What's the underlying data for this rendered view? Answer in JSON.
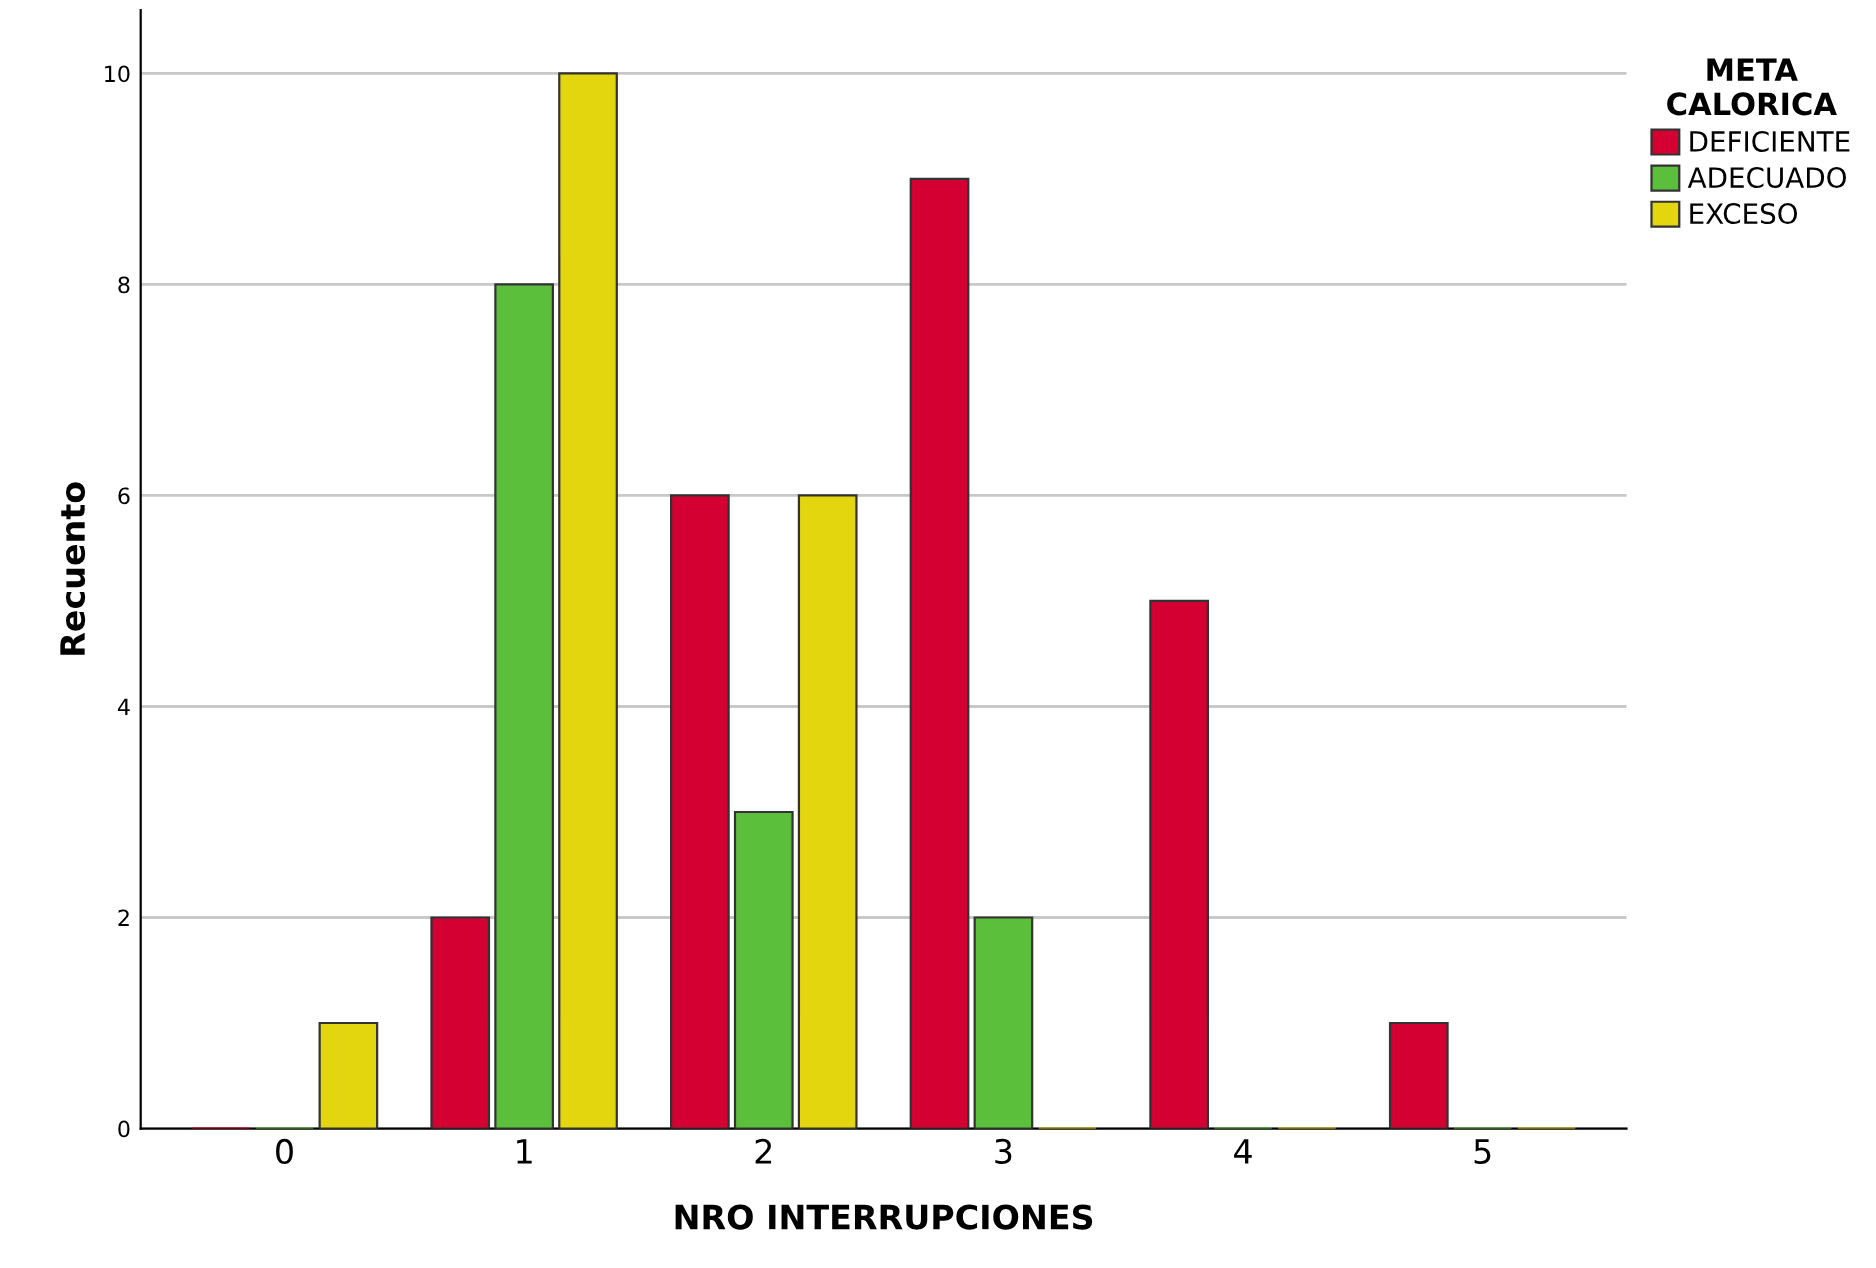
{
  "chart_data": {
    "type": "bar",
    "xlabel": "NRO INTERRUPCIONES",
    "ylabel": "Recuento",
    "legend_title": "META\nCALORICA",
    "categories": [
      "0",
      "1",
      "2",
      "3",
      "4",
      "5"
    ],
    "series": [
      {
        "name": "DEFICIENTE",
        "color": "#d50032",
        "values": [
          0,
          2,
          6,
          9,
          5,
          1
        ]
      },
      {
        "name": "ADECUADO",
        "color": "#5cbf3c",
        "values": [
          0,
          8,
          3,
          2,
          0,
          0
        ]
      },
      {
        "name": "EXCESO",
        "color": "#e3d50e",
        "values": [
          1,
          10,
          6,
          0,
          0,
          0
        ]
      }
    ],
    "ylim": [
      0,
      10.6
    ],
    "yticks": [
      0,
      2,
      4,
      6,
      8,
      10
    ],
    "grid": "y",
    "legend": "top right"
  }
}
